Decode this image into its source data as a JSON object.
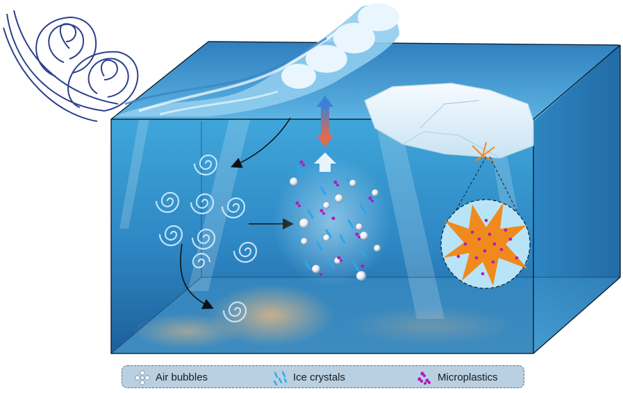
{
  "legend": {
    "items": [
      {
        "label": "Air bubbles",
        "icon": "air-bubbles-icon"
      },
      {
        "label": "Ice crystals",
        "icon": "ice-crystals-icon"
      },
      {
        "label": "Microplastics",
        "icon": "microplastics-icon"
      }
    ]
  },
  "colors": {
    "water_top": "#4aa3d8",
    "water_deep": "#1f6fae",
    "wave": "#7cc3ea",
    "ice": "#e8f3fb",
    "microplastic": "#b01bbd",
    "biofilm": "#f08a1c",
    "wind_spiral": "#2a3f8c",
    "arrow_up": "#3d7fd6",
    "arrow_down": "#e06a50",
    "legend_bg": "#b9d0e2"
  }
}
